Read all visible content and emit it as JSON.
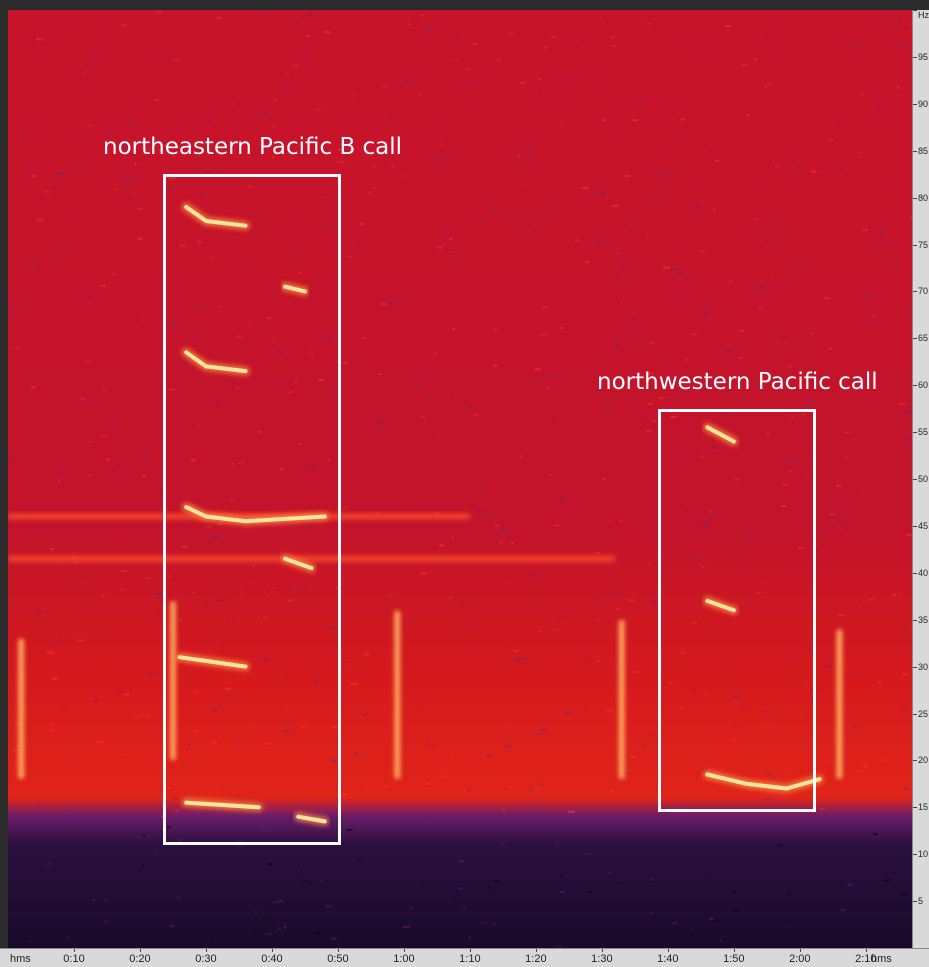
{
  "colors": {
    "background_high": "#c8142a",
    "background_low": "#1a0a2a",
    "call": "#ffe6a0",
    "call_glow": "#ff8a3a",
    "annotation": "#ffffff"
  },
  "chart_data": {
    "type": "heatmap",
    "title": "",
    "xlabel": "hms",
    "ylabel": "Hz",
    "x_unit": "seconds",
    "xlim": [
      0,
      137
    ],
    "ylim": [
      0,
      100
    ],
    "x_ticks": [
      "0:10",
      "0:20",
      "0:30",
      "0:40",
      "0:50",
      "1:00",
      "1:10",
      "1:20",
      "1:30",
      "1:40",
      "1:50",
      "2:00",
      "2:10"
    ],
    "x_tick_values": [
      10,
      20,
      30,
      40,
      50,
      60,
      70,
      80,
      90,
      100,
      110,
      120,
      130
    ],
    "x_axis_end_labels": [
      "hms",
      "hms"
    ],
    "y_ticks": [
      "5",
      "10",
      "15",
      "20",
      "25",
      "30",
      "35",
      "40",
      "45",
      "50",
      "55",
      "60",
      "65",
      "70",
      "75",
      "80",
      "85",
      "90",
      "95",
      "Hz"
    ],
    "y_tick_values": [
      5,
      10,
      15,
      20,
      25,
      30,
      35,
      40,
      45,
      50,
      55,
      60,
      65,
      70,
      75,
      80,
      85,
      90,
      95,
      100
    ],
    "noise_floor_hz": 14,
    "tonal_bands": [
      {
        "freq": 46,
        "t_start": 0,
        "t_end": 70
      },
      {
        "freq": 41.5,
        "t_start": 0,
        "t_end": 92
      }
    ],
    "calls": [
      {
        "group": "northeastern Pacific B call",
        "points": [
          [
            27,
            79
          ],
          [
            30,
            77.5
          ],
          [
            36,
            77
          ]
        ]
      },
      {
        "group": "northeastern Pacific B call",
        "points": [
          [
            42,
            70.5
          ],
          [
            45,
            70
          ]
        ]
      },
      {
        "group": "northeastern Pacific B call",
        "points": [
          [
            27,
            63.5
          ],
          [
            30,
            62
          ],
          [
            36,
            61.5
          ]
        ]
      },
      {
        "group": "northeastern Pacific B call",
        "points": [
          [
            27,
            47
          ],
          [
            30,
            46
          ],
          [
            36,
            45.5
          ],
          [
            48,
            46
          ]
        ]
      },
      {
        "group": "northeastern Pacific B call",
        "points": [
          [
            42,
            41.5
          ],
          [
            46,
            40.5
          ]
        ]
      },
      {
        "group": "northeastern Pacific B call",
        "points": [
          [
            26,
            31
          ],
          [
            31,
            30.5
          ],
          [
            36,
            30
          ]
        ]
      },
      {
        "group": "northeastern Pacific B call",
        "points": [
          [
            27,
            15.5
          ],
          [
            38,
            15
          ]
        ]
      },
      {
        "group": "northeastern Pacific B call",
        "points": [
          [
            44,
            14
          ],
          [
            48,
            13.5
          ]
        ]
      },
      {
        "group": "northwestern Pacific call",
        "points": [
          [
            106,
            55.5
          ],
          [
            110,
            54
          ]
        ]
      },
      {
        "group": "northwestern Pacific call",
        "points": [
          [
            106,
            37
          ],
          [
            110,
            36
          ]
        ]
      },
      {
        "group": "northwestern Pacific call",
        "points": [
          [
            106,
            18.5
          ],
          [
            112,
            17.5
          ],
          [
            118,
            17
          ],
          [
            123,
            18
          ]
        ]
      }
    ],
    "transients": [
      {
        "t": 25,
        "f_low": 20,
        "f_high": 37
      },
      {
        "t": 59,
        "f_low": 18,
        "f_high": 36
      },
      {
        "t": 93,
        "f_low": 18,
        "f_high": 35
      },
      {
        "t": 126,
        "f_low": 18,
        "f_high": 34
      },
      {
        "t": 2,
        "f_low": 18,
        "f_high": 33
      }
    ],
    "annotations": [
      {
        "label": "northeastern Pacific B call",
        "t_start": 23.5,
        "t_end": 50.5,
        "f_low": 11,
        "f_high": 82.5
      },
      {
        "label": "northwestern Pacific call",
        "t_start": 98.5,
        "t_end": 122.5,
        "f_low": 14.5,
        "f_high": 57.5
      }
    ]
  }
}
